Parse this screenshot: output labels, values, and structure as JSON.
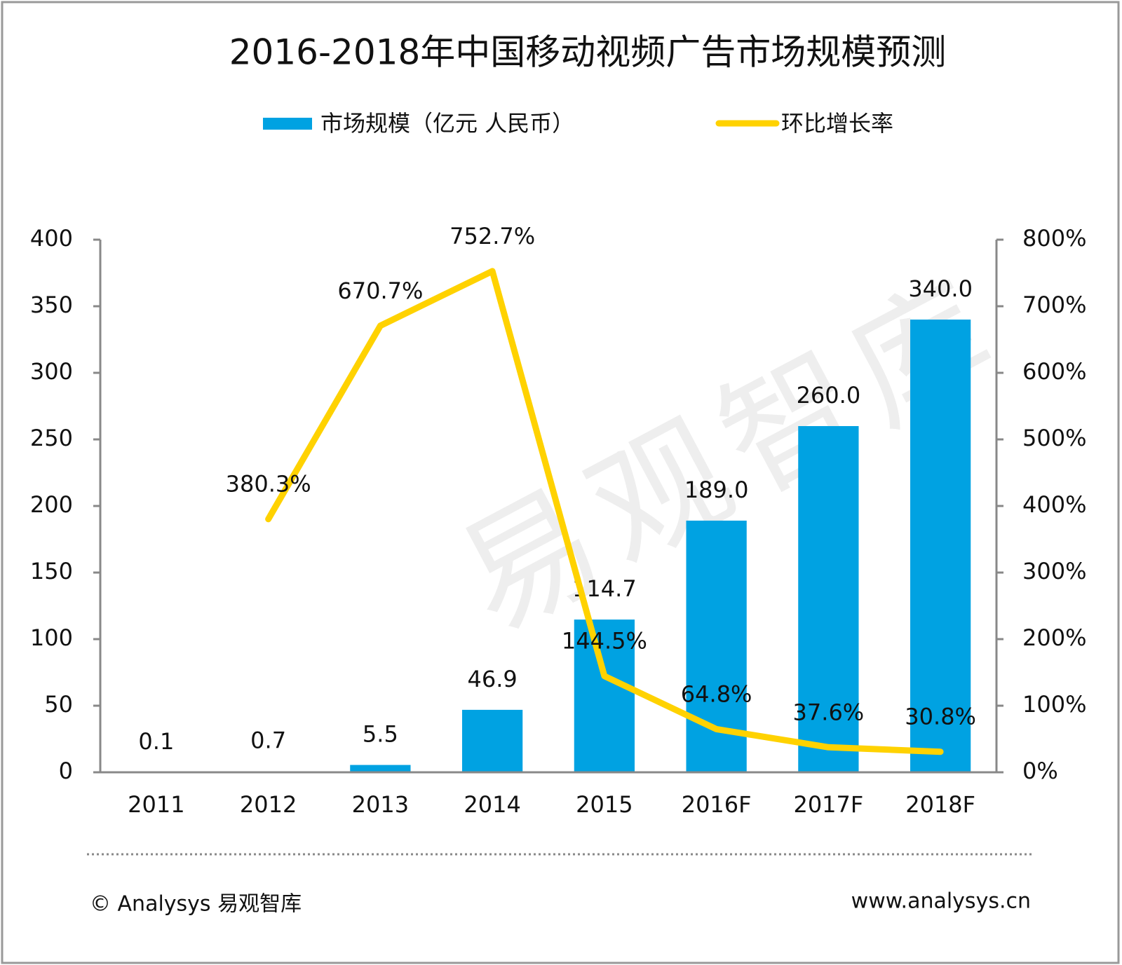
{
  "chart_data": {
    "type": "bar",
    "title": "2016-2018年中国移动视频广告市场规模预测",
    "categories": [
      "2011",
      "2012",
      "2013",
      "2014",
      "2015",
      "2016F",
      "2017F",
      "2018F"
    ],
    "series": [
      {
        "name": "市场规模（亿元 人民币）",
        "type": "bar",
        "color": "#00a2e2",
        "values": [
          0.1,
          0.7,
          5.5,
          46.9,
          114.7,
          189.0,
          260.0,
          340.0
        ],
        "value_labels": [
          "0.1",
          "0.7",
          "5.5",
          "46.9",
          "114.7",
          "189.0",
          "260.0",
          "340.0"
        ]
      },
      {
        "name": "环比增长率",
        "type": "line",
        "axis": "y2",
        "color": "#ffd200",
        "values": [
          null,
          380.3,
          670.7,
          752.7,
          144.5,
          64.8,
          37.6,
          30.8
        ],
        "value_labels": [
          null,
          "380.3%",
          "670.7%",
          "752.7%",
          "144.5%",
          "64.8%",
          "37.6%",
          "30.8%"
        ]
      }
    ],
    "ylim": [
      0,
      400
    ],
    "yticks": [
      0,
      50,
      100,
      150,
      200,
      250,
      300,
      350,
      400
    ],
    "y2lim": [
      0,
      800
    ],
    "y2ticks": [
      {
        "value": 0,
        "label": "0%"
      },
      {
        "value": 100,
        "label": "100%"
      },
      {
        "value": 200,
        "label": "200%"
      },
      {
        "value": 300,
        "label": "300%"
      },
      {
        "value": 400,
        "label": "400%"
      },
      {
        "value": 500,
        "label": "500%"
      },
      {
        "value": 600,
        "label": "600%"
      },
      {
        "value": 700,
        "label": "700%"
      },
      {
        "value": 800,
        "label": "800%"
      }
    ],
    "grid": false,
    "legend": "top",
    "watermark": "易观智库",
    "footer_left": "© Analysys 易观智库",
    "footer_right": "www.analysys.cn"
  }
}
